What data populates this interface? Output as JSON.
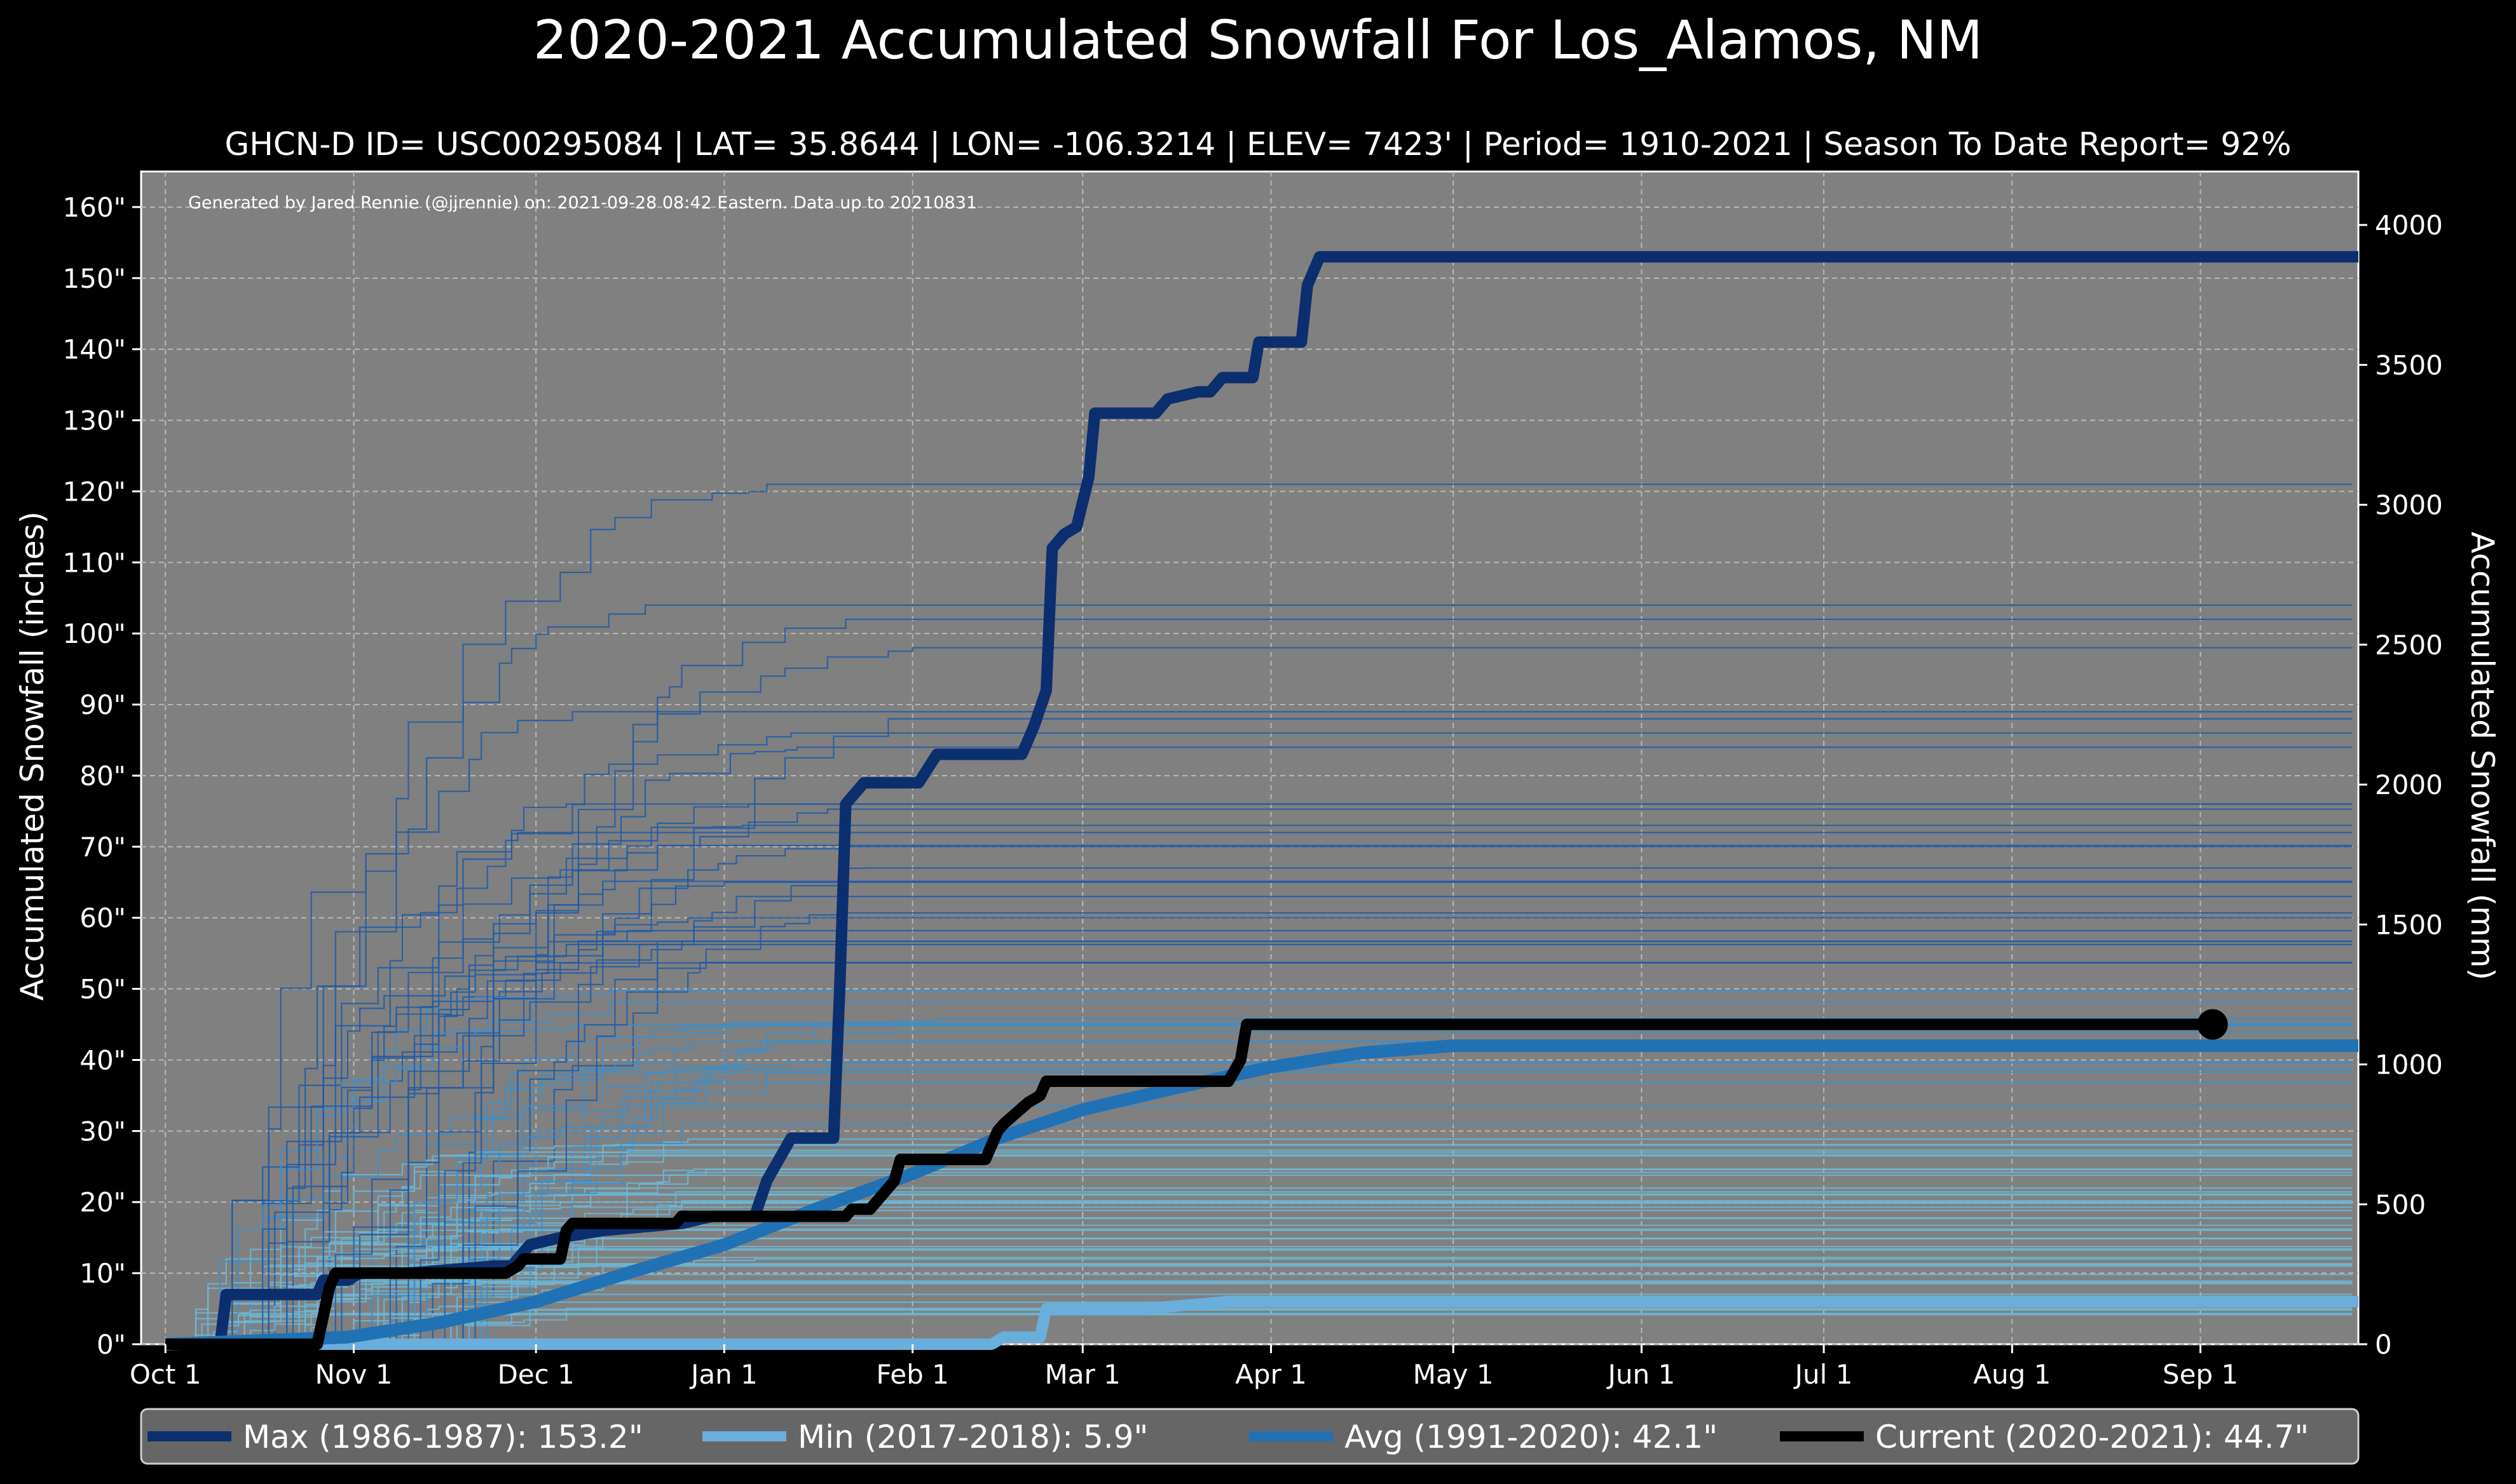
{
  "chart_data": {
    "type": "line",
    "title": "2020-2021 Accumulated Snowfall For Los_Alamos, NM",
    "subtitle": "GHCN-D ID= USC00295084 | LAT= 35.8644 | LON= -106.3214 | ELEV= 7423' | Period= 1910-2021 | Season To Date Report= 92%",
    "credit": "Generated by Jared Rennie (@jjrennie) on: 2021-09-28 08:42 Eastern. Data up to 20210831",
    "ylabel_left": "Accumulated Snowfall (inches)",
    "ylabel_right": "Accumulated Snowfall (mm)",
    "x_range_days": [
      -4,
      361
    ],
    "ylim_inches": [
      0,
      165
    ],
    "x_ticks": [
      {
        "day": 0,
        "label": "Oct 1"
      },
      {
        "day": 31,
        "label": "Nov 1"
      },
      {
        "day": 61,
        "label": "Dec 1"
      },
      {
        "day": 92,
        "label": "Jan 1"
      },
      {
        "day": 123,
        "label": "Feb 1"
      },
      {
        "day": 151,
        "label": "Mar 1"
      },
      {
        "day": 182,
        "label": "Apr 1"
      },
      {
        "day": 212,
        "label": "May 1"
      },
      {
        "day": 243,
        "label": "Jun 1"
      },
      {
        "day": 273,
        "label": "Jul 1"
      },
      {
        "day": 304,
        "label": "Aug 1"
      },
      {
        "day": 335,
        "label": "Sep 1"
      }
    ],
    "y_ticks_left": [
      {
        "value": 0,
        "label": "0\""
      },
      {
        "value": 10,
        "label": "10\""
      },
      {
        "value": 20,
        "label": "20\""
      },
      {
        "value": 30,
        "label": "30\""
      },
      {
        "value": 40,
        "label": "40\""
      },
      {
        "value": 50,
        "label": "50\""
      },
      {
        "value": 60,
        "label": "60\""
      },
      {
        "value": 70,
        "label": "70\""
      },
      {
        "value": 80,
        "label": "80\""
      },
      {
        "value": 90,
        "label": "90\""
      },
      {
        "value": 100,
        "label": "100\""
      },
      {
        "value": 110,
        "label": "110\""
      },
      {
        "value": 120,
        "label": "120\""
      },
      {
        "value": 130,
        "label": "130\""
      },
      {
        "value": 140,
        "label": "140\""
      },
      {
        "value": 150,
        "label": "150\""
      },
      {
        "value": 160,
        "label": "160\""
      }
    ],
    "y_ticks_right": [
      {
        "value": 0,
        "label": "0"
      },
      {
        "value": 500,
        "label": "500"
      },
      {
        "value": 1000,
        "label": "1000"
      },
      {
        "value": 1500,
        "label": "1500"
      },
      {
        "value": 2000,
        "label": "2000"
      },
      {
        "value": 2500,
        "label": "2500"
      },
      {
        "value": 3000,
        "label": "3000"
      },
      {
        "value": 3500,
        "label": "3500"
      },
      {
        "value": 4000,
        "label": "4000"
      }
    ],
    "grid": true,
    "legend_position": "bottom",
    "series": [
      {
        "name": "Max (1986-1987)",
        "total": "153.2\"",
        "color": "#0b2f6e",
        "points": [
          [
            0,
            0
          ],
          [
            9,
            0
          ],
          [
            10,
            7
          ],
          [
            25,
            7
          ],
          [
            26,
            9
          ],
          [
            30,
            9
          ],
          [
            32,
            10
          ],
          [
            40,
            10
          ],
          [
            54,
            11
          ],
          [
            57,
            11
          ],
          [
            60,
            14
          ],
          [
            65,
            15
          ],
          [
            72,
            16
          ],
          [
            85,
            17
          ],
          [
            90,
            18
          ],
          [
            97,
            18
          ],
          [
            99,
            23
          ],
          [
            103,
            29
          ],
          [
            110,
            29
          ],
          [
            111,
            50
          ],
          [
            112,
            76
          ],
          [
            115,
            79
          ],
          [
            124,
            79
          ],
          [
            127,
            83
          ],
          [
            141,
            83
          ],
          [
            143,
            87
          ],
          [
            145,
            92
          ],
          [
            146,
            112
          ],
          [
            148,
            114
          ],
          [
            150,
            115
          ],
          [
            152,
            122
          ],
          [
            153,
            131
          ],
          [
            163,
            131
          ],
          [
            165,
            133
          ],
          [
            170,
            134
          ],
          [
            172,
            134
          ],
          [
            174,
            136
          ],
          [
            179,
            136
          ],
          [
            180,
            141
          ],
          [
            187,
            141
          ],
          [
            188,
            149
          ],
          [
            190,
            153
          ],
          [
            361,
            153
          ]
        ]
      },
      {
        "name": "Min (2017-2018)",
        "total": "5.9\"",
        "color": "#6aaedc",
        "points": [
          [
            0,
            0
          ],
          [
            136,
            0
          ],
          [
            138,
            1
          ],
          [
            144,
            1
          ],
          [
            145,
            5
          ],
          [
            161,
            5
          ],
          [
            175,
            6
          ],
          [
            361,
            6
          ]
        ]
      },
      {
        "name": "Avg (1991-2020)",
        "total": "42.1\"",
        "color": "#2171b5",
        "points": [
          [
            0,
            0
          ],
          [
            30,
            1
          ],
          [
            45,
            3
          ],
          [
            61,
            6
          ],
          [
            76,
            10
          ],
          [
            92,
            14
          ],
          [
            107,
            19
          ],
          [
            123,
            24
          ],
          [
            137,
            29
          ],
          [
            151,
            33
          ],
          [
            166,
            36
          ],
          [
            182,
            39
          ],
          [
            197,
            41
          ],
          [
            212,
            42
          ],
          [
            361,
            42
          ]
        ]
      },
      {
        "name": "Current (2020-2021)",
        "total": "44.7\"",
        "color": "#000000",
        "points": [
          [
            0,
            0
          ],
          [
            25,
            0
          ],
          [
            27,
            8
          ],
          [
            28,
            10
          ],
          [
            56,
            10
          ],
          [
            58,
            11
          ],
          [
            59,
            12
          ],
          [
            65,
            12
          ],
          [
            66,
            16
          ],
          [
            67,
            17
          ],
          [
            84,
            17
          ],
          [
            85,
            18
          ],
          [
            112,
            18
          ],
          [
            113,
            19
          ],
          [
            116,
            19
          ],
          [
            117,
            20
          ],
          [
            120,
            23
          ],
          [
            121,
            26
          ],
          [
            135,
            26
          ],
          [
            136,
            28
          ],
          [
            137,
            30
          ],
          [
            138,
            31
          ],
          [
            142,
            34
          ],
          [
            144,
            35
          ],
          [
            145,
            37
          ],
          [
            152,
            37
          ],
          [
            175,
            37
          ],
          [
            177,
            40
          ],
          [
            178,
            45
          ],
          [
            337,
            45
          ]
        ],
        "end_marker_day": 337
      }
    ]
  }
}
